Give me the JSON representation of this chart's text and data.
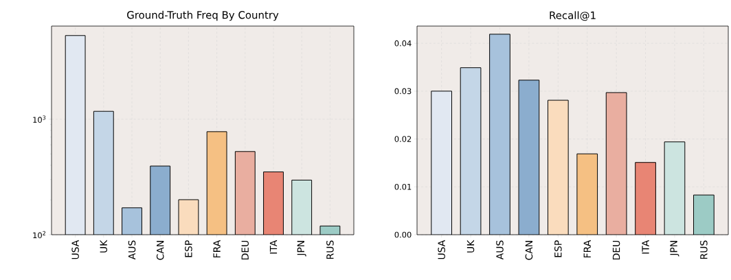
{
  "chart_data": [
    {
      "type": "bar",
      "title": "Ground-Truth Freq By Country",
      "categories": [
        "USA",
        "UK",
        "AUS",
        "CAN",
        "ESP",
        "FRA",
        "DEU",
        "ITA",
        "JPN",
        "RUS"
      ],
      "values": [
        5300,
        1170,
        171,
        393,
        201,
        780,
        525,
        350,
        297,
        119
      ],
      "colors": [
        "#e1e8f2",
        "#c4d6e7",
        "#a7c2dc",
        "#8badce",
        "#fadcbd",
        "#f5c083",
        "#e9aea0",
        "#e88574",
        "#cce4e0",
        "#9ccbc5"
      ],
      "log": "y",
      "ylim": [
        100,
        6400
      ],
      "yticks": [
        {
          "value": 100,
          "label": "10$^{2}$"
        },
        {
          "value": 1000,
          "label": "10$^{3}$"
        }
      ],
      "grid": true
    },
    {
      "type": "bar",
      "title": "Recall@1",
      "categories": [
        "USA",
        "UK",
        "AUS",
        "CAN",
        "ESP",
        "FRA",
        "DEU",
        "ITA",
        "JPN",
        "RUS"
      ],
      "values": [
        0.03,
        0.0349,
        0.0419,
        0.0323,
        0.0281,
        0.0169,
        0.0297,
        0.0151,
        0.0194,
        0.0083
      ],
      "colors": [
        "#e1e8f2",
        "#c4d6e7",
        "#a7c2dc",
        "#8badce",
        "#fadcbd",
        "#f5c083",
        "#e9aea0",
        "#e88574",
        "#cce4e0",
        "#9ccbc5"
      ],
      "ylim": [
        0,
        0.0436
      ],
      "yticks": [
        {
          "value": 0,
          "label": "0.00"
        },
        {
          "value": 0.01,
          "label": "0.01"
        },
        {
          "value": 0.02,
          "label": "0.02"
        },
        {
          "value": 0.03,
          "label": "0.03"
        },
        {
          "value": 0.04,
          "label": "0.04"
        }
      ],
      "grid": true
    }
  ]
}
